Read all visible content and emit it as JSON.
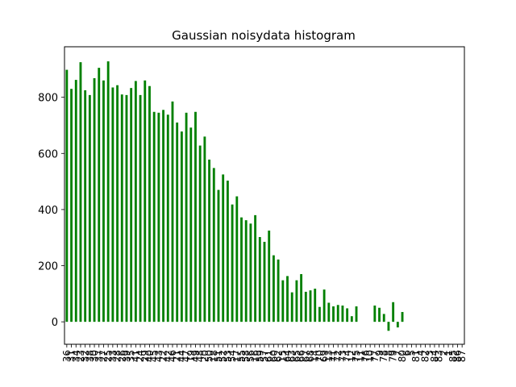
{
  "chart_data": {
    "type": "bar",
    "title": "Gaussian noisydata histogram",
    "xlabel": "",
    "ylabel": "",
    "ylim": [
      -80,
      980
    ],
    "yticks": [
      0,
      200,
      400,
      600,
      800
    ],
    "bar_color": "#008000",
    "grid": false,
    "categories": [
      "36",
      "31",
      "34",
      "23",
      "32",
      "38",
      "30",
      "37",
      "27",
      "25",
      "33",
      "28",
      "26",
      "39",
      "35",
      "41",
      "24",
      "29",
      "40",
      "45",
      "43",
      "22",
      "42",
      "46",
      "21",
      "44",
      "47",
      "19",
      "49",
      "48",
      "20",
      "50",
      "18",
      "51",
      "52",
      "53",
      "54",
      "17",
      "55",
      "58",
      "56",
      "16",
      "59",
      "57",
      "61",
      "60",
      "62",
      "15",
      "64",
      "63",
      "65",
      "66",
      "67",
      "68",
      "14",
      "70",
      "69",
      "13",
      "71",
      "72",
      "73",
      "74",
      "12",
      "75",
      "11",
      "76",
      "10",
      "77",
      "9",
      "78",
      "8",
      "79",
      "7",
      "80",
      "6",
      "5",
      "81",
      "4",
      "82",
      "3",
      "84",
      "83",
      "2",
      "1",
      "85",
      "86",
      "87"
    ],
    "values": [
      898,
      830,
      862,
      925,
      825,
      808,
      868,
      905,
      860,
      928,
      835,
      843,
      810,
      808,
      833,
      858,
      808,
      860,
      840,
      748,
      745,
      755,
      738,
      785,
      710,
      678,
      745,
      692,
      748,
      628,
      660,
      578,
      548,
      470,
      525,
      503,
      418,
      447,
      372,
      362,
      350,
      380,
      302,
      285,
      325,
      237,
      222,
      148,
      163,
      105,
      148,
      170,
      107,
      112,
      118,
      53,
      115,
      68,
      55,
      60,
      58,
      48,
      20,
      55,
      0,
      0,
      0,
      58,
      50,
      28,
      -32,
      70,
      -20,
      35,
      0,
      0,
      0,
      0,
      0,
      0,
      0,
      0,
      0,
      0,
      0,
      0,
      0
    ],
    "values_shown_count": 74
  }
}
